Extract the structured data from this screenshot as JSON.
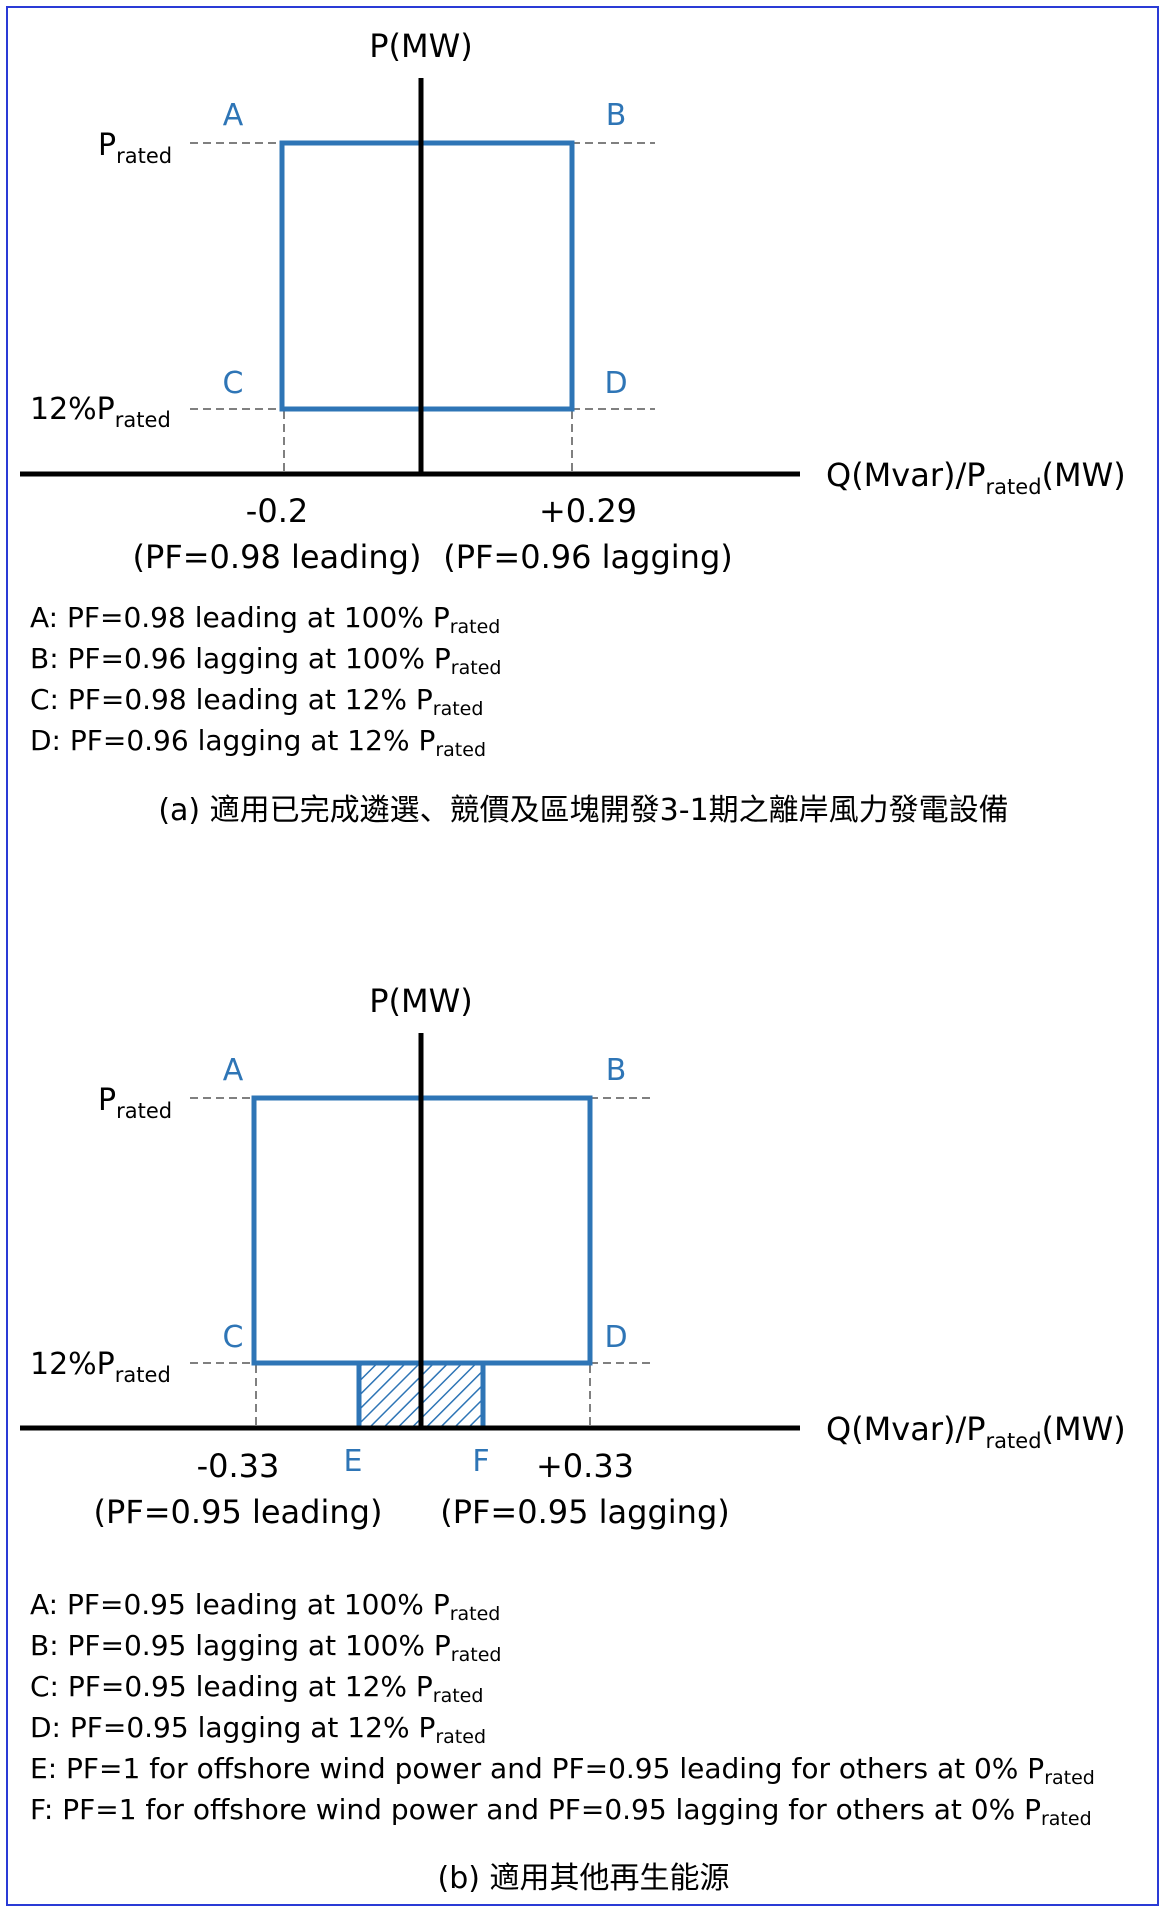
{
  "diagram_a": {
    "y_axis_label": "P(MW)",
    "x_axis_label_pre": "Q(Mvar)/P",
    "x_axis_label_sub": "rated",
    "x_axis_label_post": "(MW)",
    "level_top_pre": "P",
    "level_top_sub": "rated",
    "level_bottom_pre": "12%P",
    "level_bottom_sub": "rated",
    "point_a": "A",
    "point_b": "B",
    "point_c": "C",
    "point_d": "D",
    "tick_left_value": "-0.2",
    "tick_left_pf": "(PF=0.98 leading)",
    "tick_right_value": "+0.29",
    "tick_right_pf": "(PF=0.96 lagging)",
    "notes": [
      {
        "text": "A: PF=0.98 leading at 100% P",
        "sub": "rated"
      },
      {
        "text": "B: PF=0.96 lagging at 100% P",
        "sub": "rated"
      },
      {
        "text": "C: PF=0.98 leading at 12% P",
        "sub": "rated"
      },
      {
        "text": "D: PF=0.96 lagging at 12% P",
        "sub": "rated"
      }
    ],
    "caption": "(a) 適用已完成遴選、競價及區塊開發3-1期之離岸風力發電設備"
  },
  "diagram_b": {
    "y_axis_label": "P(MW)",
    "x_axis_label_pre": "Q(Mvar)/P",
    "x_axis_label_sub": "rated",
    "x_axis_label_post": "(MW)",
    "level_top_pre": "P",
    "level_top_sub": "rated",
    "level_bottom_pre": "12%P",
    "level_bottom_sub": "rated",
    "point_a": "A",
    "point_b": "B",
    "point_c": "C",
    "point_d": "D",
    "point_e": "E",
    "point_f": "F",
    "tick_left_value": "-0.33",
    "tick_left_pf": "(PF=0.95 leading)",
    "tick_right_value": "+0.33",
    "tick_right_pf": "(PF=0.95 lagging)",
    "notes": [
      {
        "text": "A: PF=0.95 leading at 100% P",
        "sub": "rated"
      },
      {
        "text": "B: PF=0.95 lagging at 100% P",
        "sub": "rated"
      },
      {
        "text": "C: PF=0.95 leading at 12% P",
        "sub": "rated"
      },
      {
        "text": "D: PF=0.95 lagging at 12% P",
        "sub": "rated"
      },
      {
        "text": "E: PF=1 for offshore wind power and PF=0.95 leading for others at 0% P",
        "sub": "rated"
      },
      {
        "text": "F: PF=1 for offshore wind power and PF=0.95 lagging for others at 0% P",
        "sub": "rated"
      }
    ],
    "caption": "(b) 適用其他再生能源"
  },
  "colors": {
    "region_outline": "#2e75b6",
    "point_label": "#2e75b6",
    "axis": "#000000",
    "dashed_guide": "#808080",
    "frame": "#2a3bd6"
  }
}
